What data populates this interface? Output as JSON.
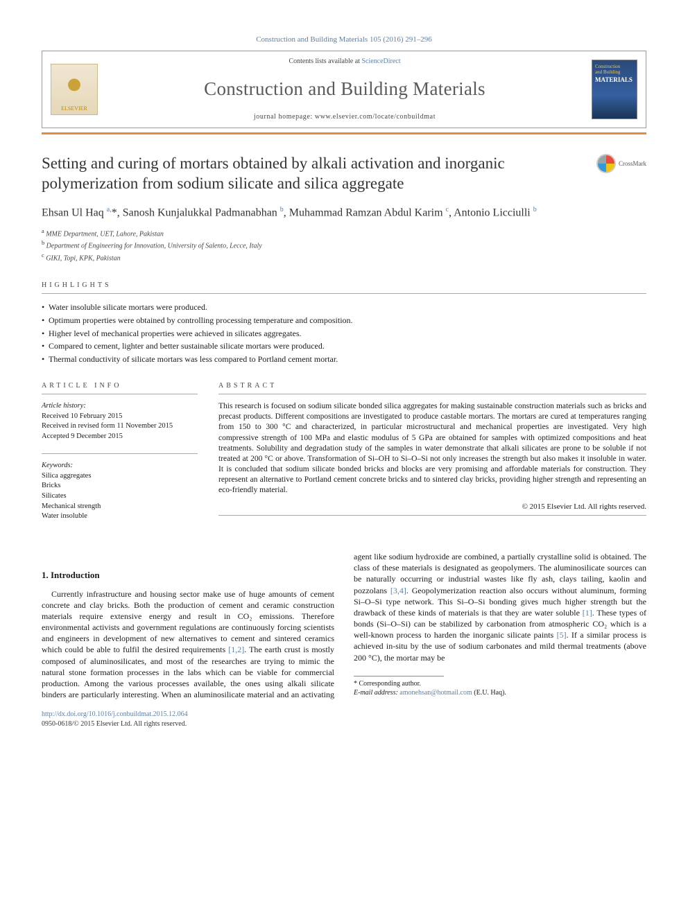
{
  "header": {
    "journal_ref": "Construction and Building Materials 105 (2016) 291–296",
    "contents_line_prefix": "Contents lists available at ",
    "contents_line_link": "ScienceDirect",
    "journal_title": "Construction and Building Materials",
    "homepage_prefix": "journal homepage: ",
    "homepage_url": "www.elsevier.com/locate/conbuildmat",
    "elsevier_label": "ELSEVIER",
    "cover_line1": "Construction",
    "cover_line2": "and Building",
    "cover_line3": "MATERIALS"
  },
  "crossmark_label": "CrossMark",
  "title": "Setting and curing of mortars obtained by alkali activation and inorganic polymerization from sodium silicate and silica aggregate",
  "authors_html": "Ehsan Ul Haq <sup>a,</sup>*, Sanosh Kunjalukkal Padmanabhan <sup>b</sup>, Muhammad Ramzan Abdul Karim <sup>c</sup>, Antonio Licciulli <sup>b</sup>",
  "affiliations": {
    "a": "MME Department, UET, Lahore, Pakistan",
    "b": "Department of Engineering for Innovation, University of Salento, Lecce, Italy",
    "c": "GIKI, Topi, KPK, Pakistan"
  },
  "highlights_label": "highlights",
  "highlights": [
    "Water insoluble silicate mortars were produced.",
    "Optimum properties were obtained by controlling processing temperature and composition.",
    "Higher level of mechanical properties were achieved in silicates aggregates.",
    "Compared to cement, lighter and better sustainable silicate mortars were produced.",
    "Thermal conductivity of silicate mortars was less compared to Portland cement mortar."
  ],
  "article_info_label": "article info",
  "abstract_label": "abstract",
  "history": {
    "heading": "Article history:",
    "received": "Received 10 February 2015",
    "revised": "Received in revised form 11 November 2015",
    "accepted": "Accepted 9 December 2015"
  },
  "keywords_heading": "Keywords:",
  "keywords": [
    "Silica aggregates",
    "Bricks",
    "Silicates",
    "Mechanical strength",
    "Water insoluble"
  ],
  "abstract": "This research is focused on sodium silicate bonded silica aggregates for making sustainable construction materials such as bricks and precast products. Different compositions are investigated to produce castable mortars. The mortars are cured at temperatures ranging from 150 to 300 °C and characterized, in particular microstructural and mechanical properties are investigated. Very high compressive strength of 100 MPa and elastic modulus of 5 GPa are obtained for samples with optimized compositions and heat treatments. Solubility and degradation study of the samples in water demonstrate that alkali silicates are prone to be soluble if not treated at 200 °C or above. Transformation of Si–OH to Si–O–Si not only increases the strength but also makes it insoluble in water. It is concluded that sodium silicate bonded bricks and blocks are very promising and affordable materials for construction. They represent an alternative to Portland cement concrete bricks and to sintered clay bricks, providing higher strength and representing an eco-friendly material.",
  "copyright": "© 2015 Elsevier Ltd. All rights reserved.",
  "intro_heading": "1. Introduction",
  "intro_p1_a": "Currently infrastructure and housing sector make use of huge amounts of cement concrete and clay bricks. Both the production of cement and ceramic construction materials require extensive energy and result in CO₂ emissions. Therefore environmental activists and government regulations are continuously forcing scientists and engineers in development of new alternatives to cement and sintered ceramics which could be able to fulfil the desired requirements ",
  "intro_ref12": "[1,2]",
  "intro_p1_b": ". The earth crust is mostly composed of aluminosilicates, and most of the researches are trying to mimic the natural stone formation processes in the labs which can be viable for commercial production. Among the various processes available, the ones using alkali silicate binders are particularly interesting. When an aluminosilicate material and an activating agent like sodium hydroxide are combined, a partially crystalline solid is obtained. The class of these materials is designated as geopolymers. The aluminosilicate sources can be naturally occurring or industrial wastes like fly ash, clays tailing, kaolin and pozzolans ",
  "intro_ref34": "[3,4]",
  "intro_p1_c": ". Geopolymerization reaction also occurs without aluminum, forming Si–O–Si type network. This Si–O–Si bonding gives much higher strength but the drawback of these kinds of materials is that they are water soluble ",
  "intro_ref1": "[1]",
  "intro_p1_d": ". These types of bonds (Si–O–Si) can be stabilized by carbonation from atmospheric CO₂ which is a well-known process to harden the inorganic silicate paints ",
  "intro_ref5": "[5]",
  "intro_p1_e": ". If a similar process is achieved in-situ by the use of sodium carbonates and mild thermal treatments (above 200 °C), the mortar may be",
  "footnote": {
    "corr": "* Corresponding author.",
    "email_label": "E-mail address:",
    "email": "amonehsan@hotmail.com",
    "email_suffix": "(E.U. Haq)."
  },
  "footer": {
    "doi": "http://dx.doi.org/10.1016/j.conbuildmat.2015.12.064",
    "issn_line": "0950-0618/© 2015 Elsevier Ltd. All rights reserved."
  },
  "colors": {
    "link": "#5b7fa6",
    "rule": "#e5893a",
    "text": "#1a1a1a"
  }
}
